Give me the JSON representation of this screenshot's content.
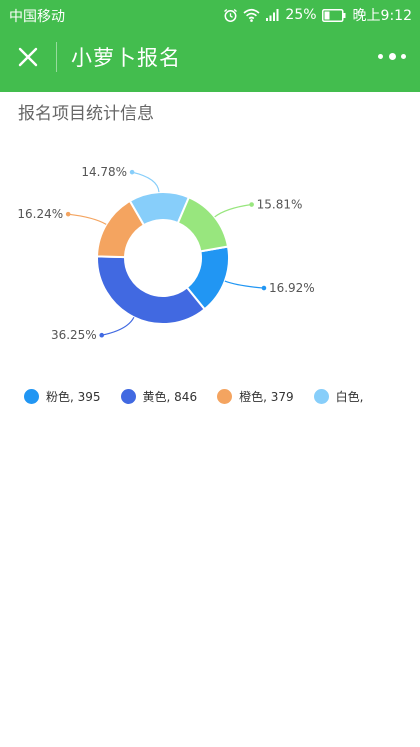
{
  "status_bar": {
    "carrier": "中国移动",
    "battery": "25%",
    "time": "晚上9:12",
    "icons": [
      "alarm-icon",
      "wifi-icon",
      "signal-icon",
      "battery-icon"
    ]
  },
  "nav": {
    "title": "小萝卜报名",
    "close_icon": "close-icon",
    "more_icon": "more-icon",
    "background": "#43bd4e"
  },
  "section": {
    "title": "报名项目统计信息"
  },
  "chart_data": {
    "type": "pie",
    "variant": "donut",
    "slices": [
      {
        "label": "16.92%",
        "value": 16.92,
        "color": "#2196f3"
      },
      {
        "label": "36.25%",
        "value": 36.25,
        "color": "#4169e1"
      },
      {
        "label": "16.24%",
        "value": 16.24,
        "color": "#f4a460"
      },
      {
        "label": "14.78%",
        "value": 14.78,
        "color": "#87cefa"
      },
      {
        "label": "15.81%",
        "value": 15.81,
        "color": "#98e67e"
      }
    ],
    "legend_position": "bottom-left"
  },
  "legend": [
    {
      "label": "粉色, 395",
      "color": "#2196f3"
    },
    {
      "label": "黄色, 846",
      "color": "#4169e1"
    },
    {
      "label": "橙色, 379",
      "color": "#f4a460"
    },
    {
      "label": "白色,",
      "color": "#87cefa"
    }
  ]
}
